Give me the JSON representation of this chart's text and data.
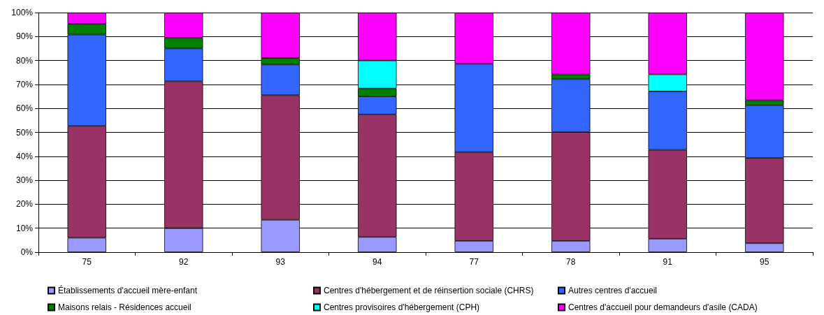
{
  "chart_data": {
    "type": "bar",
    "stacked": true,
    "categories": [
      "75",
      "92",
      "93",
      "94",
      "77",
      "78",
      "91",
      "95"
    ],
    "series": [
      {
        "name": "Établissements d'accueil mère-enfant",
        "color": "#9999ff",
        "values": [
          6,
          10,
          13.5,
          6.3,
          4.7,
          4.7,
          5.6,
          3.7
        ]
      },
      {
        "name": "Centres d'hébergement et de réinsertion sociale (CHRS)",
        "color": "#993366",
        "values": [
          46.7,
          61.3,
          52,
          51.2,
          37.1,
          45.4,
          37.1,
          35.6
        ]
      },
      {
        "name": "Autres centres d'accueil",
        "color": "#3366ff",
        "values": [
          38.1,
          13.7,
          12.8,
          7.5,
          36.8,
          22.1,
          24.4,
          22
        ]
      },
      {
        "name": "Maisons relais - Résidences accueil",
        "color": "#008000",
        "values": [
          4.5,
          4.5,
          2.7,
          3.3,
          null,
          2,
          null,
          2.1
        ]
      },
      {
        "name": "Centres provisoires d'hébergement (CPH)",
        "color": "#00ffff",
        "values": [
          null,
          null,
          null,
          11.7,
          null,
          null,
          7.1,
          null
        ]
      },
      {
        "name": "Centres d'accueil pour demandeurs d'asile (CADA)",
        "color": "#ff00ff",
        "values": [
          4.7,
          10.5,
          19,
          20,
          21.4,
          25.8,
          25.8,
          36.6
        ]
      }
    ],
    "ylim": [
      0,
      100
    ],
    "yticks": [
      {
        "value": 0,
        "label": "0%"
      },
      {
        "value": 10,
        "label": "10%"
      },
      {
        "value": 20,
        "label": "20%"
      },
      {
        "value": 30,
        "label": "30%"
      },
      {
        "value": 40,
        "label": "40%"
      },
      {
        "value": 50,
        "label": "50%"
      },
      {
        "value": 60,
        "label": "60%"
      },
      {
        "value": 70,
        "label": "70%"
      },
      {
        "value": 80,
        "label": "80%"
      },
      {
        "value": 90,
        "label": "90%"
      },
      {
        "value": 100,
        "label": "100%"
      }
    ],
    "grid": "y",
    "legend": "bottom"
  }
}
